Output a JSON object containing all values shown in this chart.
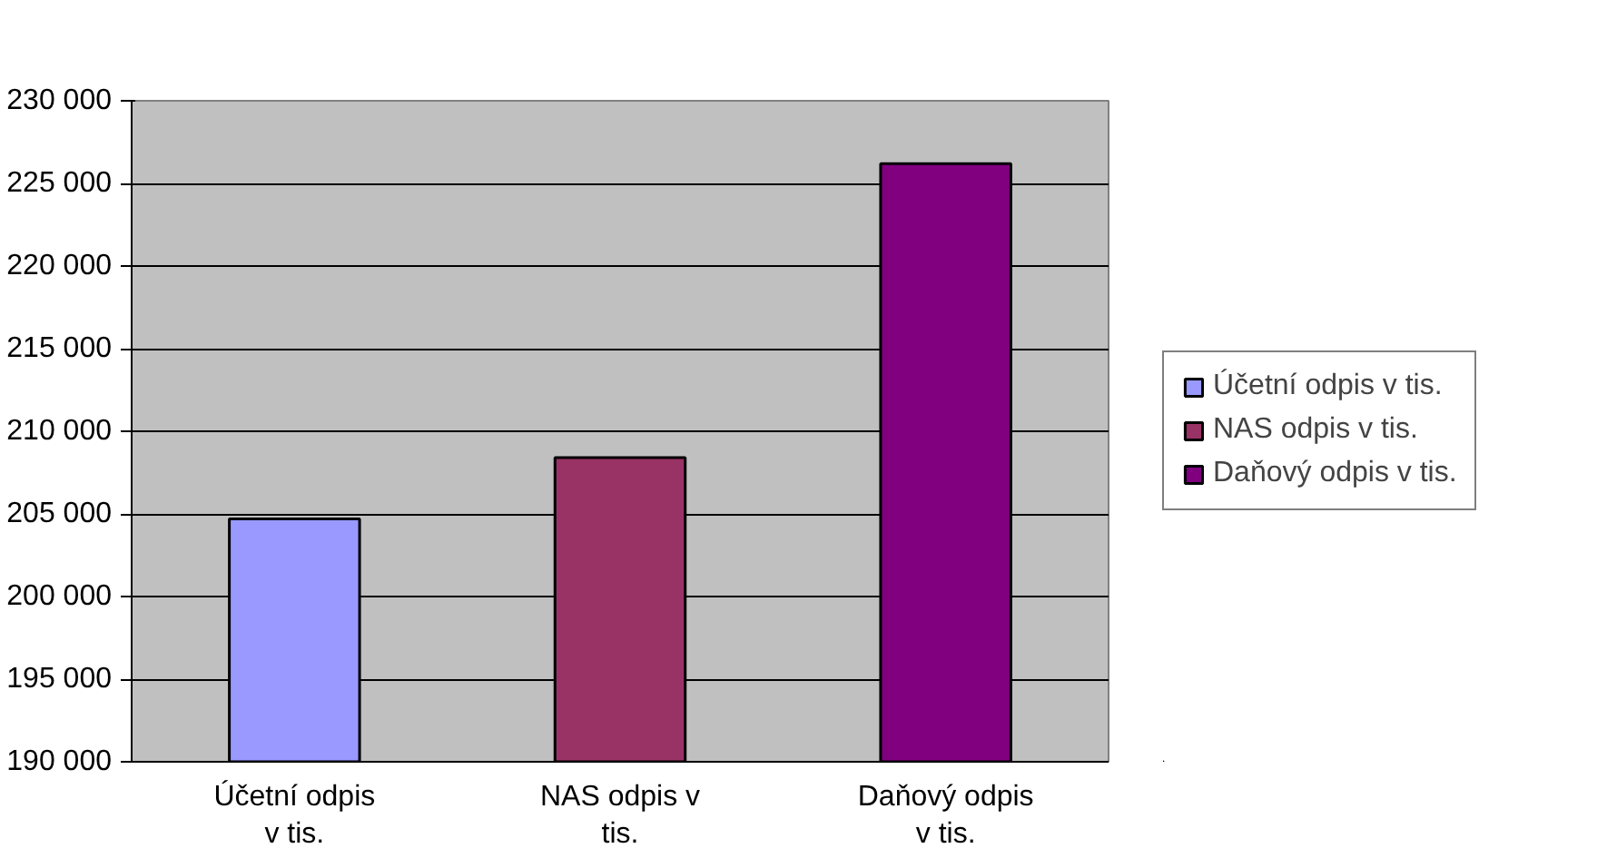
{
  "chart_data": {
    "type": "bar",
    "stacked": true,
    "categories": [
      "Účetní odpis v tis.",
      "NAS odpis v tis.",
      "Daňový odpis v tis."
    ],
    "series": [
      {
        "name": "Účetní odpis v tis.",
        "color": "#9999ff",
        "values": [
          204700,
          null,
          null
        ]
      },
      {
        "name": "NAS odpis v tis.",
        "color": "#993366",
        "values": [
          null,
          208400,
          null
        ]
      },
      {
        "name": "Daňový odpis v tis.",
        "color": "#800080",
        "values": [
          null,
          null,
          226200
        ]
      }
    ],
    "ylim": [
      190000,
      230000
    ],
    "yticks": [
      {
        "value": 190000,
        "label": "190 000"
      },
      {
        "value": 195000,
        "label": "195 000"
      },
      {
        "value": 200000,
        "label": "200 000"
      },
      {
        "value": 205000,
        "label": "205 000"
      },
      {
        "value": 210000,
        "label": "210 000"
      },
      {
        "value": 215000,
        "label": "215 000"
      },
      {
        "value": 220000,
        "label": "220 000"
      },
      {
        "value": 225000,
        "label": "225 000"
      },
      {
        "value": 230000,
        "label": "230 000"
      }
    ],
    "grid": "y",
    "legend": "right"
  }
}
